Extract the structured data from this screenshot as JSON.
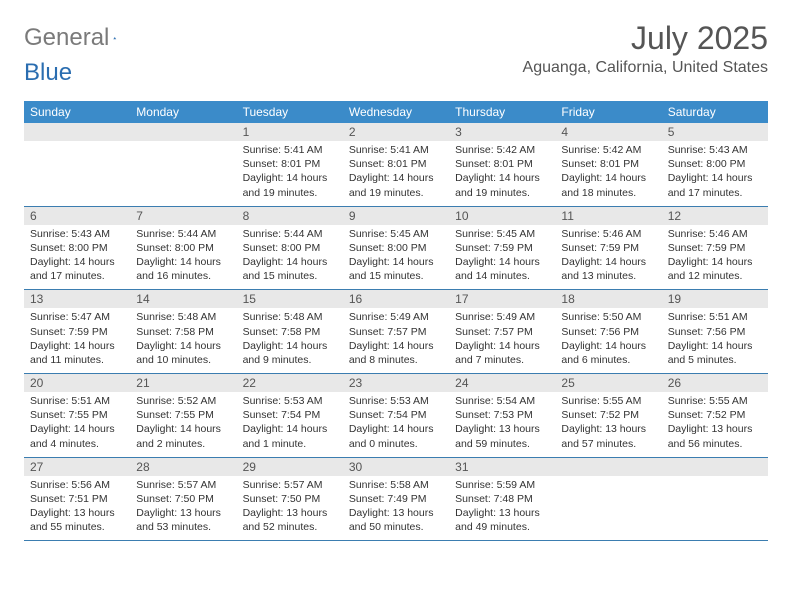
{
  "logo": {
    "text_gray": "General",
    "text_blue": "Blue"
  },
  "title": "July 2025",
  "location": "Aguanga, California, United States",
  "colors": {
    "header_bg": "#3b8bc9",
    "header_text": "#ffffff",
    "daynum_bg": "#e8e8e8",
    "week_border": "#3b7db0",
    "logo_gray": "#7a7a7a",
    "logo_blue": "#2a6db0",
    "sail_fill": "#2a6db0"
  },
  "weekdays": [
    "Sunday",
    "Monday",
    "Tuesday",
    "Wednesday",
    "Thursday",
    "Friday",
    "Saturday"
  ],
  "weeks": [
    [
      {
        "n": "",
        "sunrise": "",
        "sunset": "",
        "daylight": ""
      },
      {
        "n": "",
        "sunrise": "",
        "sunset": "",
        "daylight": ""
      },
      {
        "n": "1",
        "sunrise": "Sunrise: 5:41 AM",
        "sunset": "Sunset: 8:01 PM",
        "daylight": "Daylight: 14 hours and 19 minutes."
      },
      {
        "n": "2",
        "sunrise": "Sunrise: 5:41 AM",
        "sunset": "Sunset: 8:01 PM",
        "daylight": "Daylight: 14 hours and 19 minutes."
      },
      {
        "n": "3",
        "sunrise": "Sunrise: 5:42 AM",
        "sunset": "Sunset: 8:01 PM",
        "daylight": "Daylight: 14 hours and 19 minutes."
      },
      {
        "n": "4",
        "sunrise": "Sunrise: 5:42 AM",
        "sunset": "Sunset: 8:01 PM",
        "daylight": "Daylight: 14 hours and 18 minutes."
      },
      {
        "n": "5",
        "sunrise": "Sunrise: 5:43 AM",
        "sunset": "Sunset: 8:00 PM",
        "daylight": "Daylight: 14 hours and 17 minutes."
      }
    ],
    [
      {
        "n": "6",
        "sunrise": "Sunrise: 5:43 AM",
        "sunset": "Sunset: 8:00 PM",
        "daylight": "Daylight: 14 hours and 17 minutes."
      },
      {
        "n": "7",
        "sunrise": "Sunrise: 5:44 AM",
        "sunset": "Sunset: 8:00 PM",
        "daylight": "Daylight: 14 hours and 16 minutes."
      },
      {
        "n": "8",
        "sunrise": "Sunrise: 5:44 AM",
        "sunset": "Sunset: 8:00 PM",
        "daylight": "Daylight: 14 hours and 15 minutes."
      },
      {
        "n": "9",
        "sunrise": "Sunrise: 5:45 AM",
        "sunset": "Sunset: 8:00 PM",
        "daylight": "Daylight: 14 hours and 15 minutes."
      },
      {
        "n": "10",
        "sunrise": "Sunrise: 5:45 AM",
        "sunset": "Sunset: 7:59 PM",
        "daylight": "Daylight: 14 hours and 14 minutes."
      },
      {
        "n": "11",
        "sunrise": "Sunrise: 5:46 AM",
        "sunset": "Sunset: 7:59 PM",
        "daylight": "Daylight: 14 hours and 13 minutes."
      },
      {
        "n": "12",
        "sunrise": "Sunrise: 5:46 AM",
        "sunset": "Sunset: 7:59 PM",
        "daylight": "Daylight: 14 hours and 12 minutes."
      }
    ],
    [
      {
        "n": "13",
        "sunrise": "Sunrise: 5:47 AM",
        "sunset": "Sunset: 7:59 PM",
        "daylight": "Daylight: 14 hours and 11 minutes."
      },
      {
        "n": "14",
        "sunrise": "Sunrise: 5:48 AM",
        "sunset": "Sunset: 7:58 PM",
        "daylight": "Daylight: 14 hours and 10 minutes."
      },
      {
        "n": "15",
        "sunrise": "Sunrise: 5:48 AM",
        "sunset": "Sunset: 7:58 PM",
        "daylight": "Daylight: 14 hours and 9 minutes."
      },
      {
        "n": "16",
        "sunrise": "Sunrise: 5:49 AM",
        "sunset": "Sunset: 7:57 PM",
        "daylight": "Daylight: 14 hours and 8 minutes."
      },
      {
        "n": "17",
        "sunrise": "Sunrise: 5:49 AM",
        "sunset": "Sunset: 7:57 PM",
        "daylight": "Daylight: 14 hours and 7 minutes."
      },
      {
        "n": "18",
        "sunrise": "Sunrise: 5:50 AM",
        "sunset": "Sunset: 7:56 PM",
        "daylight": "Daylight: 14 hours and 6 minutes."
      },
      {
        "n": "19",
        "sunrise": "Sunrise: 5:51 AM",
        "sunset": "Sunset: 7:56 PM",
        "daylight": "Daylight: 14 hours and 5 minutes."
      }
    ],
    [
      {
        "n": "20",
        "sunrise": "Sunrise: 5:51 AM",
        "sunset": "Sunset: 7:55 PM",
        "daylight": "Daylight: 14 hours and 4 minutes."
      },
      {
        "n": "21",
        "sunrise": "Sunrise: 5:52 AM",
        "sunset": "Sunset: 7:55 PM",
        "daylight": "Daylight: 14 hours and 2 minutes."
      },
      {
        "n": "22",
        "sunrise": "Sunrise: 5:53 AM",
        "sunset": "Sunset: 7:54 PM",
        "daylight": "Daylight: 14 hours and 1 minute."
      },
      {
        "n": "23",
        "sunrise": "Sunrise: 5:53 AM",
        "sunset": "Sunset: 7:54 PM",
        "daylight": "Daylight: 14 hours and 0 minutes."
      },
      {
        "n": "24",
        "sunrise": "Sunrise: 5:54 AM",
        "sunset": "Sunset: 7:53 PM",
        "daylight": "Daylight: 13 hours and 59 minutes."
      },
      {
        "n": "25",
        "sunrise": "Sunrise: 5:55 AM",
        "sunset": "Sunset: 7:52 PM",
        "daylight": "Daylight: 13 hours and 57 minutes."
      },
      {
        "n": "26",
        "sunrise": "Sunrise: 5:55 AM",
        "sunset": "Sunset: 7:52 PM",
        "daylight": "Daylight: 13 hours and 56 minutes."
      }
    ],
    [
      {
        "n": "27",
        "sunrise": "Sunrise: 5:56 AM",
        "sunset": "Sunset: 7:51 PM",
        "daylight": "Daylight: 13 hours and 55 minutes."
      },
      {
        "n": "28",
        "sunrise": "Sunrise: 5:57 AM",
        "sunset": "Sunset: 7:50 PM",
        "daylight": "Daylight: 13 hours and 53 minutes."
      },
      {
        "n": "29",
        "sunrise": "Sunrise: 5:57 AM",
        "sunset": "Sunset: 7:50 PM",
        "daylight": "Daylight: 13 hours and 52 minutes."
      },
      {
        "n": "30",
        "sunrise": "Sunrise: 5:58 AM",
        "sunset": "Sunset: 7:49 PM",
        "daylight": "Daylight: 13 hours and 50 minutes."
      },
      {
        "n": "31",
        "sunrise": "Sunrise: 5:59 AM",
        "sunset": "Sunset: 7:48 PM",
        "daylight": "Daylight: 13 hours and 49 minutes."
      },
      {
        "n": "",
        "sunrise": "",
        "sunset": "",
        "daylight": ""
      },
      {
        "n": "",
        "sunrise": "",
        "sunset": "",
        "daylight": ""
      }
    ]
  ]
}
